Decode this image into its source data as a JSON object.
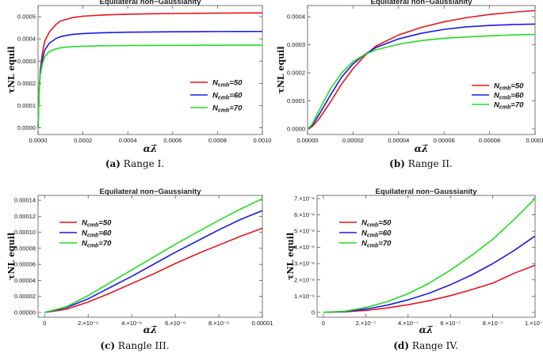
{
  "chart_data": [
    {
      "type": "line",
      "panel": "a",
      "title": "Equilateral non−Gaussianity",
      "xlabel": "αλ̄",
      "ylabel": "τNL equil",
      "xlim": [
        0,
        0.001
      ],
      "ylim": [
        -3e-05,
        0.00055
      ],
      "xticks": [
        0.0,
        0.0002,
        0.0004,
        0.0006,
        0.0008,
        0.001
      ],
      "xtick_labels": [
        "0.0000",
        "0.0002",
        "0.0004",
        "0.0006",
        "0.0008",
        "0.0010"
      ],
      "yticks": [
        0.0,
        0.0001,
        0.0002,
        0.0003,
        0.0004,
        0.0005
      ],
      "ytick_labels": [
        "0.0000",
        "0.0001",
        "0.0002",
        "0.0003",
        "0.0004",
        "0.0005"
      ],
      "legend_position": "right-middle",
      "caption_letter": "(a)",
      "caption_text": "Range I.",
      "series": [
        {
          "name": "N",
          "sub": "cmb",
          "suffix": "=50",
          "color": "#e8141a",
          "x": [
            0,
            5e-06,
            1e-05,
            2e-05,
            3e-05,
            5e-05,
            8e-05,
            0.0001,
            0.00015,
            0.0002,
            0.0003,
            0.0004,
            0.0005,
            0.0006,
            0.0007,
            0.0008,
            0.0009,
            0.001
          ],
          "y": [
            0,
            0.00017,
            0.00026,
            0.00034,
            0.00039,
            0.00043,
            0.000465,
            0.00048,
            0.000495,
            0.000502,
            0.000508,
            0.000511,
            0.000513,
            0.000514,
            0.000515,
            0.000516,
            0.0005165,
            0.000517
          ]
        },
        {
          "name": "N",
          "sub": "cmb",
          "suffix": "=60",
          "color": "#1a1ae8",
          "x": [
            0,
            5e-06,
            1e-05,
            2e-05,
            3e-05,
            5e-05,
            8e-05,
            0.0001,
            0.00015,
            0.0002,
            0.0003,
            0.0004,
            0.0005,
            0.0006,
            0.0007,
            0.0008,
            0.0009,
            0.001
          ],
          "y": [
            0,
            0.00017,
            0.00025,
            0.00031,
            0.00035,
            0.00038,
            0.000402,
            0.00041,
            0.00042,
            0.000424,
            0.000428,
            0.00043,
            0.000431,
            0.000432,
            0.0004325,
            0.000433,
            0.0004333,
            0.0004335
          ]
        },
        {
          "name": "N",
          "sub": "cmb",
          "suffix": "=70",
          "color": "#22dd22",
          "x": [
            0,
            5e-06,
            1e-05,
            2e-05,
            3e-05,
            5e-05,
            8e-05,
            0.0001,
            0.00015,
            0.0002,
            0.0003,
            0.0004,
            0.0005,
            0.0006,
            0.0007,
            0.0008,
            0.0009,
            0.001
          ],
          "y": [
            0,
            0.00017,
            0.00024,
            0.00029,
            0.00032,
            0.000343,
            0.000355,
            0.00036,
            0.000365,
            0.000367,
            0.000369,
            0.00037,
            0.0003705,
            0.000371,
            0.0003713,
            0.0003715,
            0.0003717,
            0.000372
          ]
        }
      ]
    },
    {
      "type": "line",
      "panel": "b",
      "title": "Equilateral non−Gaussianity",
      "xlabel": "αλ̄",
      "ylabel": "τNL equil",
      "xlim": [
        0,
        0.0001
      ],
      "ylim": [
        -2e-05,
        0.00044
      ],
      "xticks": [
        0.0,
        2e-05,
        4e-05,
        6e-05,
        8e-05,
        0.0001
      ],
      "xtick_labels": [
        "0.00000",
        "0.00002",
        "0.00004",
        "0.00006",
        "0.00008",
        "0.0001"
      ],
      "yticks": [
        0.0,
        0.0001,
        0.0002,
        0.0003,
        0.0004
      ],
      "ytick_labels": [
        "0.0000",
        "0.0001",
        "0.0002",
        "0.0003",
        "0.0004"
      ],
      "legend_position": "right-middle",
      "caption_letter": "(b)",
      "caption_text": "Range II.",
      "series": [
        {
          "name": "N",
          "sub": "cmb",
          "suffix": "=50",
          "color": "#e8141a",
          "x": [
            0,
            2e-06,
            5e-06,
            1e-05,
            1.5e-05,
            2e-05,
            2.5e-05,
            3e-05,
            4e-05,
            5e-05,
            6e-05,
            7e-05,
            8e-05,
            9e-05,
            0.0001
          ],
          "y": [
            0,
            8e-06,
            3.5e-05,
            9.5e-05,
            0.00016,
            0.000215,
            0.00026,
            0.000295,
            0.000335,
            0.000362,
            0.000382,
            0.000397,
            0.000408,
            0.000416,
            0.000422
          ]
        },
        {
          "name": "N",
          "sub": "cmb",
          "suffix": "=60",
          "color": "#1a1ae8",
          "x": [
            0,
            2e-06,
            5e-06,
            1e-05,
            1.5e-05,
            2e-05,
            2.5e-05,
            3e-05,
            4e-05,
            5e-05,
            6e-05,
            7e-05,
            8e-05,
            9e-05,
            0.0001
          ],
          "y": [
            0,
            1.2e-05,
            5e-05,
            0.00012,
            0.000185,
            0.000232,
            0.000265,
            0.00029,
            0.000321,
            0.000341,
            0.000355,
            0.000364,
            0.000369,
            0.000372,
            0.000374
          ]
        },
        {
          "name": "N",
          "sub": "cmb",
          "suffix": "=70",
          "color": "#22dd22",
          "x": [
            0,
            2e-06,
            5e-06,
            1e-05,
            1.5e-05,
            2e-05,
            2.5e-05,
            3e-05,
            4e-05,
            5e-05,
            6e-05,
            7e-05,
            8e-05,
            9e-05,
            0.0001
          ],
          "y": [
            0,
            1.6e-05,
            6.5e-05,
            0.000142,
            0.0002,
            0.00024,
            0.000265,
            0.000282,
            0.000302,
            0.000315,
            0.000323,
            0.000328,
            0.000332,
            0.000335,
            0.000337
          ]
        }
      ]
    },
    {
      "type": "line",
      "panel": "c",
      "title": "Equilateral non−Gaussianity",
      "xlabel": "αλ̄",
      "ylabel": "τNL equil",
      "xlim": [
        -3e-07,
        1e-05
      ],
      "ylim": [
        -6e-06,
        0.000146
      ],
      "xticks": [
        0.0,
        2e-06,
        4e-06,
        6e-06,
        8e-06,
        1e-05
      ],
      "xtick_labels": [
        "0",
        "2.×10⁻⁶",
        "4.×10⁻⁶",
        "6.×10⁻⁶",
        "8.×10⁻⁶",
        "0.00001"
      ],
      "yticks": [
        0.0,
        2e-05,
        4e-05,
        6e-05,
        8e-05,
        0.0001,
        0.00012,
        0.00014
      ],
      "ytick_labels": [
        "0.00000",
        "0.00002",
        "0.00004",
        "0.00006",
        "0.00008",
        "0.00010",
        "0.00012",
        "0.00014"
      ],
      "legend_position": "top-left",
      "caption_letter": "(c)",
      "caption_text": "Rangle III.",
      "series": [
        {
          "name": "N",
          "sub": "cmb",
          "suffix": "=50",
          "color": "#e8141a",
          "x": [
            0,
            1e-06,
            2e-06,
            3e-06,
            4e-06,
            5e-06,
            6e-06,
            7e-06,
            8e-06,
            9e-06,
            1e-05
          ],
          "y": [
            0,
            4e-06,
            1.3e-05,
            2.4e-05,
            3.6e-05,
            4.8e-05,
            6.1e-05,
            7.3e-05,
            8.4e-05,
            9.5e-05,
            0.000105
          ]
        },
        {
          "name": "N",
          "sub": "cmb",
          "suffix": "=60",
          "color": "#1a1ae8",
          "x": [
            0,
            1e-06,
            2e-06,
            3e-06,
            4e-06,
            5e-06,
            6e-06,
            7e-06,
            8e-06,
            9e-06,
            1e-05
          ],
          "y": [
            0,
            6e-06,
            1.7e-05,
            3.1e-05,
            4.5e-05,
            6e-05,
            7.5e-05,
            8.9e-05,
            0.000103,
            0.000116,
            0.000127
          ]
        },
        {
          "name": "N",
          "sub": "cmb",
          "suffix": "=70",
          "color": "#22dd22",
          "x": [
            0,
            1e-06,
            2e-06,
            3e-06,
            4e-06,
            5e-06,
            6e-06,
            7e-06,
            8e-06,
            9e-06,
            1e-05
          ],
          "y": [
            0,
            7e-06,
            2.1e-05,
            3.7e-05,
            5.3e-05,
            6.9e-05,
            8.5e-05,
            0.0001,
            0.000115,
            0.000129,
            0.000142
          ]
        }
      ]
    },
    {
      "type": "line",
      "panel": "d",
      "title": "Equilateral non−Gaussianity",
      "xlabel": "αλ̄",
      "ylabel": "τNL equil",
      "xlim": [
        -3e-08,
        1e-06
      ],
      "ylim": [
        -3e-07,
        7.2e-06
      ],
      "xticks": [
        0.0,
        2e-07,
        4e-07,
        6e-07,
        8e-07,
        1e-06
      ],
      "xtick_labels": [
        "0",
        "2.×10⁻⁷",
        "4.×10⁻⁷",
        "6.×10⁻⁷",
        "8.×10⁻⁷",
        "1.×10⁻⁶"
      ],
      "yticks": [
        0.0,
        1e-06,
        2e-06,
        3e-06,
        4e-06,
        5e-06,
        6e-06,
        7e-06
      ],
      "ytick_labels": [
        "0",
        "1.×10⁻⁶",
        "2.×10⁻⁶",
        "3.×10⁻⁶",
        "4.×10⁻⁶",
        "5.×10⁻⁶",
        "6.×10⁻⁶",
        "7.×10⁻⁶"
      ],
      "legend_position": "top-left",
      "caption_letter": "(d)",
      "caption_text": "Range IV.",
      "series": [
        {
          "name": "N",
          "sub": "cmb",
          "suffix": "=50",
          "color": "#e8141a",
          "x": [
            0,
            1e-07,
            2e-07,
            3e-07,
            4e-07,
            5e-07,
            6e-07,
            7e-07,
            8e-07,
            9e-07,
            1e-06
          ],
          "y": [
            0,
            3e-08,
            1.2e-07,
            2.7e-07,
            4.7e-07,
            7.2e-07,
            1.03e-06,
            1.4e-06,
            1.8e-06,
            2.4e-06,
            2.9e-06
          ]
        },
        {
          "name": "N",
          "sub": "cmb",
          "suffix": "=60",
          "color": "#1a1ae8",
          "x": [
            0,
            1e-07,
            2e-07,
            3e-07,
            4e-07,
            5e-07,
            6e-07,
            7e-07,
            8e-07,
            9e-07,
            1e-06
          ],
          "y": [
            0,
            5e-08,
            2e-07,
            4.4e-07,
            7.7e-07,
            1.18e-06,
            1.7e-06,
            2.3e-06,
            3e-06,
            3.8e-06,
            4.7e-06
          ]
        },
        {
          "name": "N",
          "sub": "cmb",
          "suffix": "=70",
          "color": "#22dd22",
          "x": [
            0,
            1e-07,
            2e-07,
            3e-07,
            4e-07,
            5e-07,
            6e-07,
            7e-07,
            8e-07,
            9e-07,
            1e-06
          ],
          "y": [
            0,
            7e-08,
            3e-07,
            6.5e-07,
            1.15e-06,
            1.8e-06,
            2.6e-06,
            3.5e-06,
            4.5e-06,
            5.7e-06,
            7e-06
          ]
        }
      ]
    }
  ]
}
